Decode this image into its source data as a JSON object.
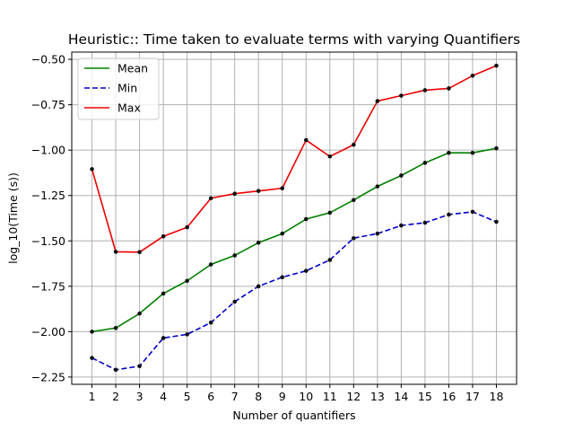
{
  "chart_data": {
    "type": "line",
    "title": "Heuristic:: Time taken to evaluate terms with varying Quantifiers",
    "xlabel": "Number of quantifiers",
    "ylabel": "log_10(Time (s))",
    "x": [
      1,
      2,
      3,
      4,
      5,
      6,
      7,
      8,
      9,
      10,
      11,
      12,
      13,
      14,
      15,
      16,
      17,
      18
    ],
    "xlim": [
      0.15,
      18.85
    ],
    "ylim": [
      -2.29,
      -0.46
    ],
    "yticks": [
      -2.25,
      -2.0,
      -1.75,
      -1.5,
      -1.25,
      -1.0,
      -0.75,
      -0.5
    ],
    "ytick_labels": [
      "−2.25",
      "−2.00",
      "−1.75",
      "−1.50",
      "−1.25",
      "−1.00",
      "−0.75",
      "−0.50"
    ],
    "xtick_labels": [
      "1",
      "2",
      "3",
      "4",
      "5",
      "6",
      "7",
      "8",
      "9",
      "10",
      "11",
      "12",
      "13",
      "14",
      "15",
      "16",
      "17",
      "18"
    ],
    "grid": true,
    "legend_position": "top-left",
    "series": [
      {
        "name": "Mean",
        "color": "#008000",
        "style": "solid",
        "values": [
          -2.0,
          -1.98,
          -1.9,
          -1.79,
          -1.72,
          -1.63,
          -1.58,
          -1.51,
          -1.46,
          -1.38,
          -1.345,
          -1.275,
          -1.2,
          -1.14,
          -1.07,
          -1.015,
          -1.015,
          -0.99
        ]
      },
      {
        "name": "Min",
        "color": "#0000cc",
        "style": "dashed",
        "values": [
          -2.145,
          -2.21,
          -2.19,
          -2.035,
          -2.015,
          -1.95,
          -1.835,
          -1.75,
          -1.7,
          -1.665,
          -1.605,
          -1.485,
          -1.46,
          -1.415,
          -1.4,
          -1.355,
          -1.34,
          -1.395
        ]
      },
      {
        "name": "Max",
        "color": "#ee0000",
        "style": "solid",
        "values": [
          -1.105,
          -1.56,
          -1.562,
          -1.475,
          -1.425,
          -1.265,
          -1.24,
          -1.225,
          -1.21,
          -0.945,
          -1.035,
          -0.97,
          -0.73,
          -0.7,
          -0.67,
          -0.66,
          -0.59,
          -0.535
        ]
      }
    ]
  }
}
